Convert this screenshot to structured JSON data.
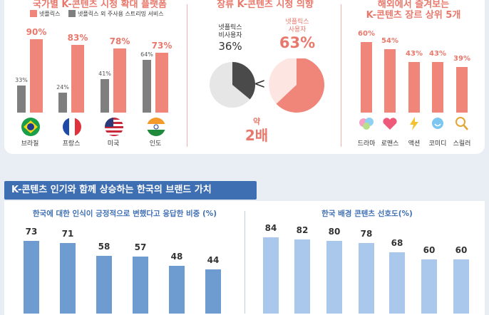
{
  "sections": {
    "left_title": "국가별 K-콘텐츠 시청 확대 플랫폼",
    "mid_title": "장류 K-콘텐츠 시청 의향",
    "right_title1": "해외에서 즐겨보는",
    "right_title2": "K-콘텐츠 장르 상위 5개",
    "bottom_banner": "K-콘텐츠 인기와 함께 상승하는 한국의 브랜드 가치"
  },
  "chart_data": [
    {
      "type": "bar",
      "title": "국가별 K-콘텐츠 시청 확대 플랫폼",
      "legend": [
        "넷플릭스",
        "넷플릭스 외 주사용 스트리밍 서비스"
      ],
      "categories": [
        "브라질",
        "프랑스",
        "미국",
        "인도"
      ],
      "series": [
        {
          "name": "넷플릭스 외 주사용 스트리밍 서비스",
          "values": [
            33,
            24,
            41,
            64
          ],
          "labels": [
            "33%",
            "24%",
            "41%",
            "64%"
          ],
          "color": "#7f7f7f"
        },
        {
          "name": "넷플릭스",
          "values": [
            90,
            83,
            78,
            73
          ],
          "labels": [
            "90%",
            "83%",
            "78%",
            "73%"
          ],
          "color": "#f0857a"
        }
      ],
      "ylim": [
        0,
        100
      ]
    },
    {
      "type": "pie",
      "title": "장류 K-콘텐츠 시청 의향",
      "pies": [
        {
          "name_line1": "넷플릭스",
          "name_line2": "비사용자",
          "value": 36,
          "label": "36%",
          "color": "#4a4a4a"
        },
        {
          "name_line1": "넷플릭스",
          "name_line2": "사용자",
          "value": 63,
          "label": "63%",
          "color": "#f0857a"
        }
      ],
      "comparison_symbol": "<",
      "annotation_line1": "약",
      "annotation_line2": "2배"
    },
    {
      "type": "bar",
      "title": "해외에서 즐겨보는 K-콘텐츠 장르 상위 5개",
      "categories": [
        "드라마",
        "로맨스",
        "액션",
        "코미디",
        "스릴러"
      ],
      "values": [
        60,
        54,
        43,
        43,
        39
      ],
      "labels": [
        "60%",
        "54%",
        "43%",
        "43%",
        "39%"
      ],
      "color": "#f0857a",
      "ylim": [
        0,
        100
      ]
    },
    {
      "type": "bar",
      "title": "한국에 대한 인식이 긍정적으로 변했다고 응답한 비중 (%)",
      "values": [
        73,
        71,
        58,
        57,
        48,
        44
      ],
      "labels": [
        "73",
        "71",
        "58",
        "57",
        "48",
        "44"
      ],
      "color": "#6e9bd0",
      "ylim": [
        0,
        100
      ]
    },
    {
      "type": "bar",
      "title": "한국 배경 콘텐츠 선호도(%)",
      "values": [
        84,
        82,
        80,
        78,
        68,
        60,
        60
      ],
      "labels": [
        "84",
        "82",
        "80",
        "78",
        "68",
        "60",
        "60"
      ],
      "color": "#a9c8ec",
      "ylim": [
        0,
        100
      ]
    }
  ],
  "colors": {
    "accent": "#e8786b",
    "netflix": "#f0857a",
    "other": "#7f7f7f",
    "blue_dark": "#6e9bd0",
    "blue_light": "#a9c8ec",
    "banner": "#3f6fb3"
  },
  "genre_icons": [
    "drama-icon",
    "romance-icon",
    "action-icon",
    "comedy-icon",
    "thriller-icon"
  ],
  "flags": [
    "brazil-flag-icon",
    "france-flag-icon",
    "usa-flag-icon",
    "india-flag-icon"
  ]
}
